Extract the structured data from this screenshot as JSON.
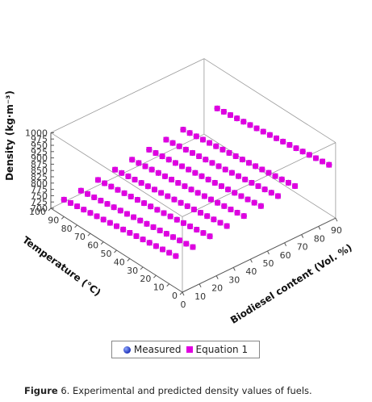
{
  "chart_data": {
    "type": "scatter",
    "projection": "3d",
    "xlabel": "Temperature (°C)",
    "ylabel": "Biodiesel content (Vol. %)",
    "zlabel": "Density (kg·m⁻³)",
    "xlim": [
      0,
      100
    ],
    "ylim": [
      0,
      90
    ],
    "zlim": [
      700,
      1000
    ],
    "x_ticks": [
      "0",
      "10",
      "20",
      "30",
      "40",
      "50",
      "60",
      "70",
      "80",
      "90",
      "100"
    ],
    "y_ticks": [
      "0",
      "10",
      "20",
      "30",
      "40",
      "50",
      "60",
      "70",
      "80",
      "90"
    ],
    "z_ticks": [
      "700",
      "725",
      "750",
      "775",
      "800",
      "825",
      "850",
      "875",
      "900",
      "925",
      "950",
      "975",
      "1000"
    ],
    "temperatures": [
      5,
      10,
      15,
      20,
      25,
      30,
      35,
      40,
      45,
      50,
      55,
      60,
      65,
      70,
      75,
      80,
      85,
      90
    ],
    "series": [
      {
        "name": "Measured",
        "color": "#1c2fb8",
        "marker": "circle",
        "lines": [
          {
            "biodiesel": 0,
            "density_at_5": 827,
            "slope": -0.7
          },
          {
            "biodiesel": 10,
            "density_at_5": 830,
            "slope": -0.7
          },
          {
            "biodiesel": 20,
            "density_at_5": 840,
            "slope": -0.7
          },
          {
            "biodiesel": 30,
            "density_at_5": 848,
            "slope": -0.7
          },
          {
            "biodiesel": 40,
            "density_at_5": 855,
            "slope": -0.7
          },
          {
            "biodiesel": 50,
            "density_at_5": 862,
            "slope": -0.7
          },
          {
            "biodiesel": 60,
            "density_at_5": 869,
            "slope": -0.7
          },
          {
            "biodiesel": 70,
            "density_at_5": 876,
            "slope": -0.7
          },
          {
            "biodiesel": 90,
            "density_at_5": 895,
            "slope": -0.7
          }
        ]
      },
      {
        "name": "Equation 1",
        "color": "#e000e0",
        "marker": "square",
        "lines": [
          {
            "biodiesel": 0,
            "density_at_5": 827,
            "slope": -0.7
          },
          {
            "biodiesel": 10,
            "density_at_5": 830,
            "slope": -0.7
          },
          {
            "biodiesel": 20,
            "density_at_5": 840,
            "slope": -0.7
          },
          {
            "biodiesel": 30,
            "density_at_5": 848,
            "slope": -0.7
          },
          {
            "biodiesel": 40,
            "density_at_5": 855,
            "slope": -0.7
          },
          {
            "biodiesel": 50,
            "density_at_5": 862,
            "slope": -0.7
          },
          {
            "biodiesel": 60,
            "density_at_5": 869,
            "slope": -0.7
          },
          {
            "biodiesel": 70,
            "density_at_5": 876,
            "slope": -0.7
          },
          {
            "biodiesel": 90,
            "density_at_5": 895,
            "slope": -0.7
          }
        ]
      }
    ],
    "legend_position": "bottom-center",
    "grid": false
  },
  "legend": {
    "measured_label": "Measured",
    "equation_label": "Equation 1"
  },
  "caption": {
    "figure_label": "Figure",
    "figure_number": "6.",
    "text": "Experimental and predicted density values of fuels."
  }
}
